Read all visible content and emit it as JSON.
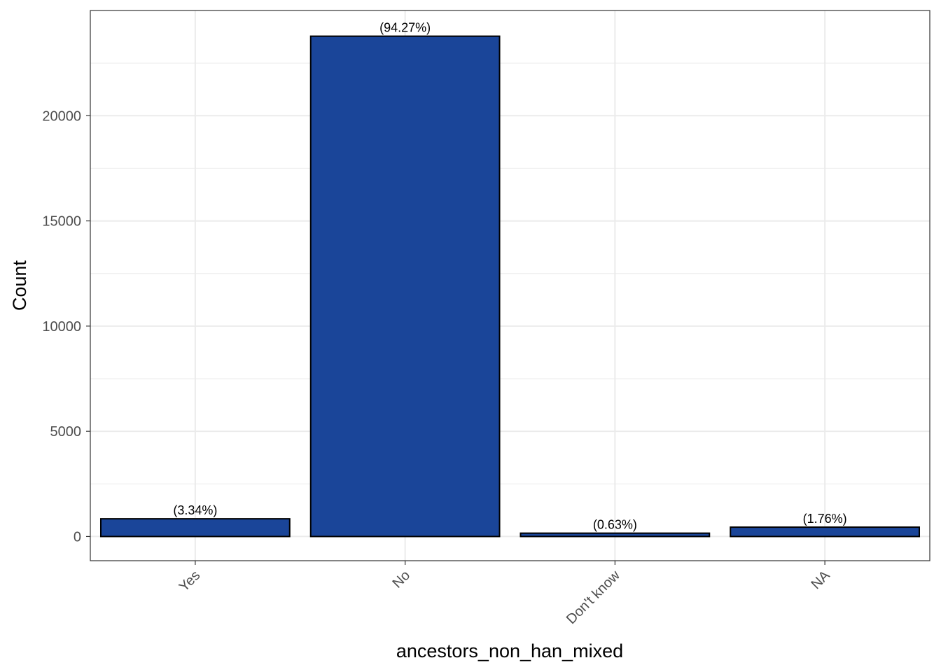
{
  "chart_data": {
    "type": "bar",
    "categories": [
      "Yes",
      "No",
      "Don't know",
      "NA"
    ],
    "values": [
      842,
      23780,
      159,
      444
    ],
    "labels": [
      "(3.34%)",
      "(94.27%)",
      "(0.63%)",
      "(1.76%)"
    ],
    "title": "",
    "xlabel": "ancestors_non_han_mixed",
    "ylabel": "Count",
    "ylim": [
      -1150,
      25000
    ],
    "yticks": [
      0,
      5000,
      10000,
      15000,
      20000
    ],
    "ytick_labels": [
      "0",
      "5000",
      "10000",
      "15000",
      "20000"
    ],
    "grid": true,
    "legend": "none",
    "colors": {
      "bar_fill": "#1a4599",
      "bar_stroke": "#000000",
      "grid": "#ebebeb",
      "panel_border": "#333333"
    }
  }
}
